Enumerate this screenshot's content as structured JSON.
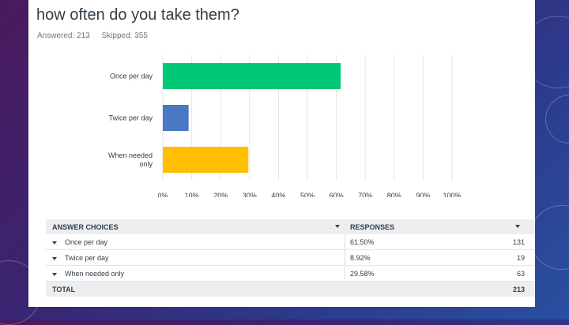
{
  "page": {
    "title": "how often do you take them?",
    "answered": "Answered: 213",
    "skipped": "Skipped: 355"
  },
  "colors": {
    "green": "#00c875",
    "blue": "#4a78c2",
    "yellow": "#ffbf00",
    "grid": "#e3e6e8"
  },
  "chart_data": {
    "type": "bar",
    "orientation": "horizontal",
    "categories": [
      "Once per day",
      "Twice per day",
      "When needed only"
    ],
    "category_lines": [
      [
        "Once per day"
      ],
      [
        "Twice per day"
      ],
      [
        "When needed",
        "only"
      ]
    ],
    "values": [
      61.5,
      8.92,
      29.58
    ],
    "colors": [
      "#00c875",
      "#4a78c2",
      "#ffbf00"
    ],
    "xlim": [
      0,
      100
    ],
    "xticks": [
      "0%",
      "10%",
      "20%",
      "30%",
      "40%",
      "50%",
      "60%",
      "70%",
      "80%",
      "90%",
      "100%"
    ],
    "grid": true
  },
  "table": {
    "headers": {
      "choices": "ANSWER CHOICES",
      "responses": "RESPONSES"
    },
    "rows": [
      {
        "choice": "Once per day",
        "percent": "61.50%",
        "count": "131"
      },
      {
        "choice": "Twice per day",
        "percent": "8.92%",
        "count": "19"
      },
      {
        "choice": "When needed only",
        "percent": "29.58%",
        "count": "63"
      }
    ],
    "total": {
      "label": "TOTAL",
      "count": "213"
    }
  }
}
